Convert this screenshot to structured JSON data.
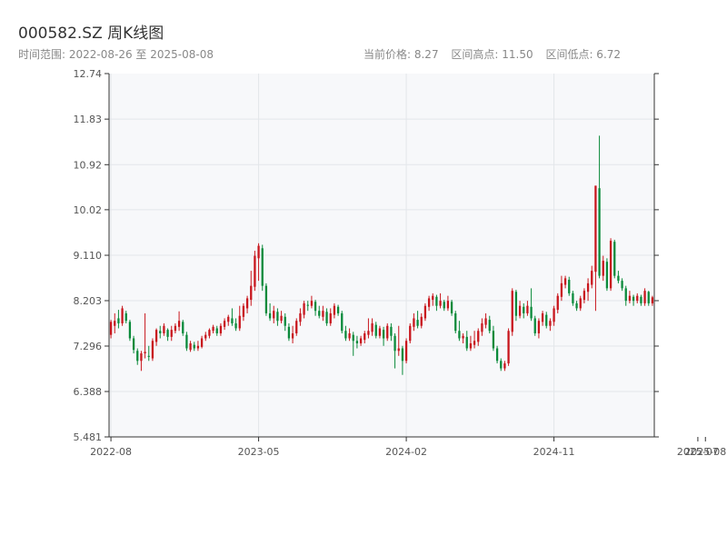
{
  "header": {
    "title": "000582.SZ 周K线图",
    "date_range": "时间范围: 2022-08-26 至 2025-08-08",
    "current_price": "当前价格: 8.27",
    "range_high": "区间高点: 11.50",
    "range_low": "区间低点: 6.72"
  },
  "colors": {
    "up": "#c8161d",
    "down": "#0a8a3a",
    "plot_bg": "#f7f8fa",
    "grid": "#e3e6ea",
    "axis": "#333333"
  },
  "chart_data": {
    "type": "candlestick",
    "title": "000582.SZ 周K线图",
    "ylim": [
      5.481,
      12.74
    ],
    "y_ticks": [
      "5.481",
      "6.388",
      "7.296",
      "8.203",
      "9.110",
      "10.02",
      "10.92",
      "11.83",
      "12.74"
    ],
    "y_tick_values": [
      5.481,
      6.388,
      7.296,
      8.203,
      9.11,
      10.02,
      10.92,
      11.83,
      12.74
    ],
    "x_ticks": [
      "2022-08",
      "2023-05",
      "2024-02",
      "2024-11",
      "2025-07",
      "2025-08"
    ],
    "x_tick_index": [
      0,
      39,
      78,
      117,
      155,
      157
    ],
    "grid": true,
    "candles": [
      [
        7.52,
        7.78,
        7.45,
        7.82
      ],
      [
        7.7,
        7.8,
        7.55,
        7.95
      ],
      [
        7.85,
        7.75,
        7.65,
        8.02
      ],
      [
        7.75,
        8.05,
        7.7,
        8.1
      ],
      [
        7.95,
        7.8,
        7.75,
        8.0
      ],
      [
        7.78,
        7.45,
        7.4,
        7.82
      ],
      [
        7.45,
        7.22,
        7.15,
        7.5
      ],
      [
        7.2,
        7.0,
        6.92,
        7.25
      ],
      [
        7.0,
        7.15,
        6.8,
        7.2
      ],
      [
        7.15,
        7.18,
        7.05,
        7.95
      ],
      [
        7.1,
        7.08,
        7.0,
        7.3
      ],
      [
        7.05,
        7.4,
        7.0,
        7.45
      ],
      [
        7.38,
        7.62,
        7.3,
        7.65
      ],
      [
        7.6,
        7.55,
        7.45,
        7.7
      ],
      [
        7.55,
        7.7,
        7.5,
        7.75
      ],
      [
        7.62,
        7.48,
        7.4,
        7.65
      ],
      [
        7.48,
        7.62,
        7.4,
        7.7
      ],
      [
        7.6,
        7.7,
        7.55,
        7.75
      ],
      [
        7.68,
        7.8,
        7.6,
        7.99
      ],
      [
        7.78,
        7.55,
        7.5,
        7.82
      ],
      [
        7.52,
        7.25,
        7.2,
        7.58
      ],
      [
        7.22,
        7.35,
        7.18,
        7.4
      ],
      [
        7.32,
        7.25,
        7.2,
        7.38
      ],
      [
        7.25,
        7.3,
        7.2,
        7.4
      ],
      [
        7.28,
        7.45,
        7.25,
        7.5
      ],
      [
        7.45,
        7.52,
        7.4,
        7.58
      ],
      [
        7.5,
        7.62,
        7.45,
        7.65
      ],
      [
        7.6,
        7.68,
        7.55,
        7.72
      ],
      [
        7.65,
        7.55,
        7.5,
        7.7
      ],
      [
        7.55,
        7.7,
        7.5,
        7.75
      ],
      [
        7.68,
        7.8,
        7.62,
        7.85
      ],
      [
        7.78,
        7.88,
        7.7,
        7.92
      ],
      [
        7.85,
        7.75,
        7.7,
        8.05
      ],
      [
        7.75,
        7.65,
        7.6,
        7.85
      ],
      [
        7.65,
        7.9,
        7.6,
        8.1
      ],
      [
        7.88,
        8.1,
        7.8,
        8.15
      ],
      [
        8.05,
        8.25,
        7.95,
        8.3
      ],
      [
        8.22,
        8.5,
        8.1,
        8.8
      ],
      [
        8.48,
        9.1,
        8.4,
        9.2
      ],
      [
        9.05,
        9.3,
        8.6,
        9.35
      ],
      [
        9.25,
        8.5,
        8.4,
        9.32
      ],
      [
        8.5,
        7.95,
        7.9,
        8.55
      ],
      [
        7.95,
        7.85,
        7.8,
        8.15
      ],
      [
        7.85,
        8.0,
        7.75,
        8.1
      ],
      [
        7.98,
        7.8,
        7.7,
        8.05
      ],
      [
        7.8,
        7.9,
        7.75,
        8.0
      ],
      [
        7.88,
        7.7,
        7.6,
        7.95
      ],
      [
        7.68,
        7.45,
        7.4,
        7.75
      ],
      [
        7.45,
        7.55,
        7.35,
        7.7
      ],
      [
        7.55,
        7.8,
        7.5,
        7.85
      ],
      [
        7.78,
        7.95,
        7.7,
        8.05
      ],
      [
        7.92,
        8.15,
        7.85,
        8.2
      ],
      [
        8.12,
        8.1,
        8.0,
        8.2
      ],
      [
        8.1,
        8.2,
        8.05,
        8.3
      ],
      [
        8.18,
        8.0,
        7.9,
        8.22
      ],
      [
        8.0,
        7.9,
        7.85,
        8.1
      ],
      [
        7.88,
        8.0,
        7.8,
        8.1
      ],
      [
        7.98,
        7.75,
        7.7,
        8.05
      ],
      [
        7.75,
        7.95,
        7.7,
        8.05
      ],
      [
        7.92,
        8.1,
        7.85,
        8.15
      ],
      [
        8.08,
        7.95,
        7.9,
        8.12
      ],
      [
        7.95,
        7.6,
        7.55,
        8.0
      ],
      [
        7.6,
        7.45,
        7.4,
        7.7
      ],
      [
        7.45,
        7.55,
        7.4,
        7.65
      ],
      [
        7.52,
        7.4,
        7.1,
        7.58
      ],
      [
        7.4,
        7.35,
        7.25,
        7.5
      ],
      [
        7.35,
        7.45,
        7.3,
        7.5
      ],
      [
        7.42,
        7.55,
        7.35,
        7.6
      ],
      [
        7.52,
        7.6,
        7.45,
        7.85
      ],
      [
        7.58,
        7.75,
        7.5,
        7.85
      ],
      [
        7.72,
        7.5,
        7.45,
        7.78
      ],
      [
        7.5,
        7.65,
        7.45,
        7.7
      ],
      [
        7.62,
        7.45,
        7.3,
        7.68
      ],
      [
        7.45,
        7.7,
        7.4,
        7.75
      ],
      [
        7.68,
        7.5,
        7.4,
        7.75
      ],
      [
        7.5,
        7.2,
        6.85,
        7.55
      ],
      [
        7.2,
        7.25,
        7.1,
        7.7
      ],
      [
        7.25,
        7.0,
        6.72,
        7.3
      ],
      [
        7.0,
        7.4,
        6.95,
        7.45
      ],
      [
        7.4,
        7.7,
        7.35,
        7.75
      ],
      [
        7.68,
        7.85,
        7.6,
        7.95
      ],
      [
        7.82,
        7.7,
        7.65,
        8.0
      ],
      [
        7.7,
        7.88,
        7.65,
        7.95
      ],
      [
        7.85,
        8.1,
        7.8,
        8.15
      ],
      [
        8.08,
        8.25,
        8.0,
        8.3
      ],
      [
        8.22,
        8.3,
        8.1,
        8.35
      ],
      [
        8.28,
        8.1,
        8.0,
        8.32
      ],
      [
        8.1,
        8.2,
        8.05,
        8.35
      ],
      [
        8.18,
        8.05,
        8.0,
        8.22
      ],
      [
        8.05,
        8.2,
        8.0,
        8.3
      ],
      [
        8.18,
        7.95,
        7.9,
        8.22
      ],
      [
        7.95,
        7.6,
        7.55,
        8.0
      ],
      [
        7.6,
        7.45,
        7.4,
        7.8
      ],
      [
        7.45,
        7.5,
        7.35,
        7.55
      ],
      [
        7.48,
        7.25,
        7.2,
        7.6
      ],
      [
        7.25,
        7.35,
        7.2,
        7.5
      ],
      [
        7.32,
        7.4,
        7.25,
        7.6
      ],
      [
        7.38,
        7.6,
        7.3,
        7.65
      ],
      [
        7.58,
        7.75,
        7.5,
        7.85
      ],
      [
        7.72,
        7.85,
        7.65,
        7.95
      ],
      [
        7.82,
        7.6,
        7.55,
        7.9
      ],
      [
        7.6,
        7.25,
        7.2,
        7.7
      ],
      [
        7.25,
        7.0,
        6.95,
        7.3
      ],
      [
        7.0,
        6.85,
        6.8,
        7.05
      ],
      [
        6.85,
        6.95,
        6.8,
        7.0
      ],
      [
        6.95,
        7.6,
        6.9,
        7.65
      ],
      [
        7.58,
        8.4,
        7.5,
        8.45
      ],
      [
        8.38,
        7.9,
        7.8,
        8.42
      ],
      [
        7.9,
        8.1,
        7.85,
        8.2
      ],
      [
        8.08,
        7.95,
        7.85,
        8.15
      ],
      [
        7.95,
        8.1,
        7.9,
        8.2
      ],
      [
        8.08,
        7.85,
        7.8,
        8.45
      ],
      [
        7.85,
        7.55,
        7.5,
        7.9
      ],
      [
        7.55,
        7.8,
        7.45,
        7.85
      ],
      [
        7.78,
        7.95,
        7.7,
        8.0
      ],
      [
        7.92,
        7.7,
        7.65,
        7.98
      ],
      [
        7.7,
        7.8,
        7.6,
        7.85
      ],
      [
        7.78,
        8.05,
        7.7,
        8.1
      ],
      [
        8.02,
        8.3,
        7.95,
        8.35
      ],
      [
        8.28,
        8.55,
        8.2,
        8.7
      ],
      [
        8.52,
        8.65,
        8.45,
        8.7
      ],
      [
        8.62,
        8.35,
        8.3,
        8.68
      ],
      [
        8.35,
        8.15,
        8.1,
        8.4
      ],
      [
        8.15,
        8.05,
        8.0,
        8.2
      ],
      [
        8.05,
        8.25,
        8.0,
        8.3
      ],
      [
        8.22,
        8.4,
        8.15,
        8.45
      ],
      [
        8.38,
        8.55,
        8.2,
        8.65
      ],
      [
        8.52,
        8.8,
        8.45,
        8.9
      ],
      [
        8.78,
        10.5,
        8.0,
        10.5
      ],
      [
        10.45,
        8.7,
        8.65,
        11.5
      ],
      [
        8.7,
        9.0,
        8.6,
        9.1
      ],
      [
        8.98,
        8.45,
        8.4,
        9.05
      ],
      [
        8.45,
        9.4,
        8.4,
        9.45
      ],
      [
        9.38,
        8.7,
        8.65,
        9.42
      ],
      [
        8.7,
        8.6,
        8.55,
        8.8
      ],
      [
        8.6,
        8.45,
        8.4,
        8.65
      ],
      [
        8.45,
        8.2,
        8.1,
        8.5
      ],
      [
        8.2,
        8.3,
        8.15,
        8.4
      ],
      [
        8.28,
        8.2,
        8.1,
        8.32
      ],
      [
        8.2,
        8.3,
        8.15,
        8.35
      ],
      [
        8.28,
        8.15,
        8.1,
        8.32
      ],
      [
        8.15,
        8.4,
        8.1,
        8.45
      ],
      [
        8.38,
        8.15,
        8.1,
        8.4
      ],
      [
        8.15,
        8.27,
        8.1,
        8.3
      ]
    ]
  }
}
